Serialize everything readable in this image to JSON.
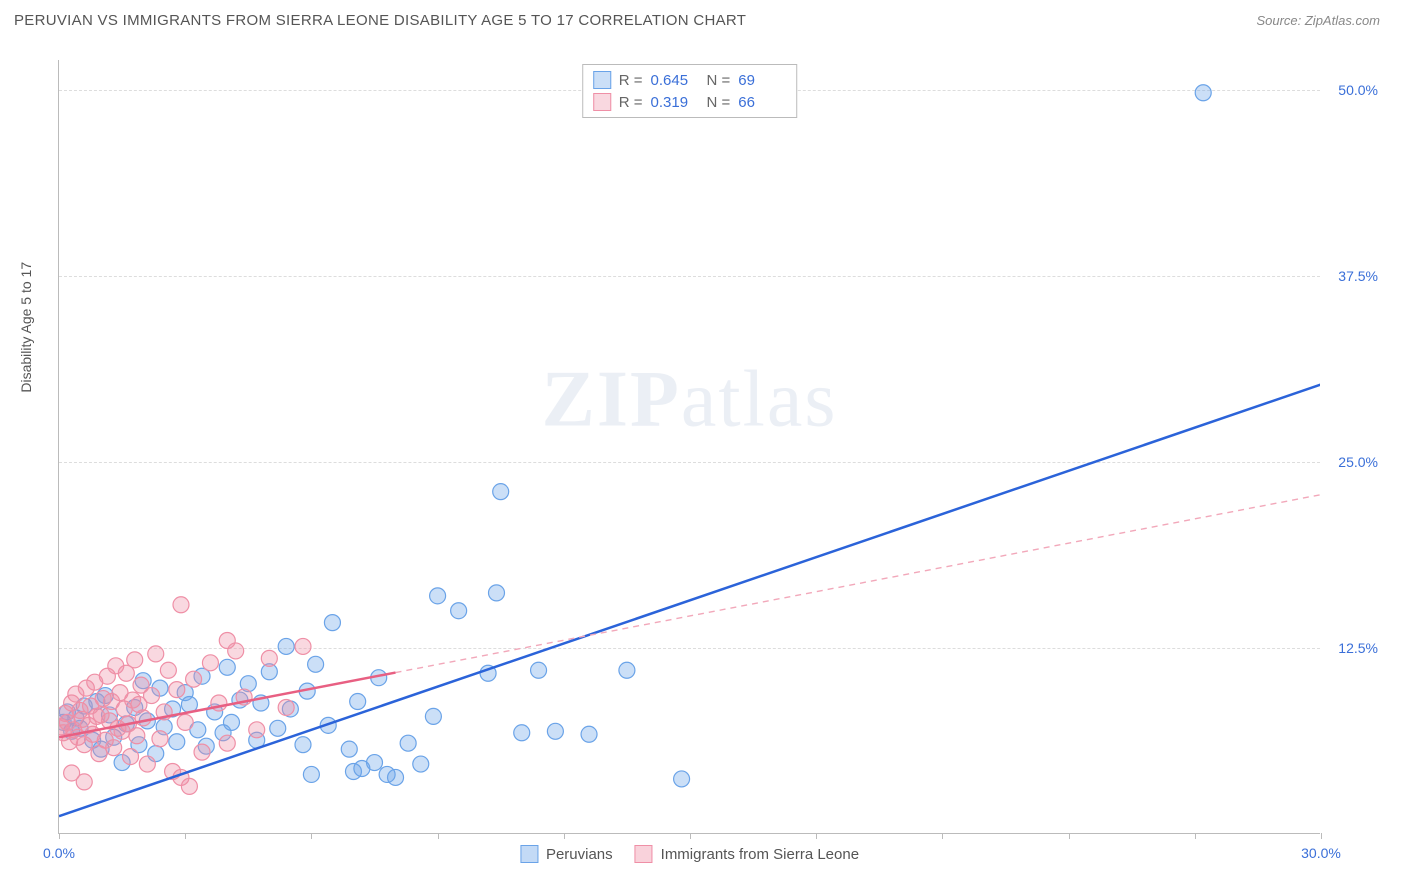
{
  "header": {
    "title": "PERUVIAN VS IMMIGRANTS FROM SIERRA LEONE DISABILITY AGE 5 TO 17 CORRELATION CHART",
    "source": "Source: ZipAtlas.com"
  },
  "chart": {
    "type": "scatter",
    "ylabel": "Disability Age 5 to 17",
    "xlim": [
      0,
      30
    ],
    "ylim": [
      0,
      52
    ],
    "xtick_positions": [
      0,
      3,
      6,
      9,
      12,
      15,
      18,
      21,
      24,
      27,
      30
    ],
    "xtick_labels": {
      "0": "0.0%",
      "30": "30.0%"
    },
    "ytick_positions": [
      12.5,
      25.0,
      37.5,
      50.0
    ],
    "ytick_labels": [
      "12.5%",
      "25.0%",
      "37.5%",
      "50.0%"
    ],
    "background_color": "#ffffff",
    "grid_color": "#dddddd",
    "axis_color": "#bbbbbb",
    "xtick_label_color": "#3a6fd8",
    "ytick_label_color": "#3a6fd8",
    "watermark": "ZIPatlas",
    "series": [
      {
        "name": "Peruvians",
        "marker_color": "#6aa3e8",
        "marker_fill": "rgba(106,163,232,0.35)",
        "marker_radius": 8,
        "line_color": "#2b63d9",
        "line_width": 2.5,
        "dash_color": "#2b63d9",
        "R": "0.645",
        "N": "69",
        "trend": {
          "x1": 0,
          "y1": 1.2,
          "x2": 30,
          "y2": 30.2
        },
        "solid_extent_x": 30,
        "points": [
          [
            0.1,
            7.5
          ],
          [
            0.2,
            8.2
          ],
          [
            0.3,
            6.9
          ],
          [
            0.4,
            7.8
          ],
          [
            0.5,
            7.1
          ],
          [
            0.6,
            8.6
          ],
          [
            0.8,
            6.3
          ],
          [
            0.9,
            8.9
          ],
          [
            1.0,
            5.7
          ],
          [
            1.1,
            9.3
          ],
          [
            1.2,
            8.0
          ],
          [
            1.3,
            6.5
          ],
          [
            1.5,
            4.8
          ],
          [
            1.6,
            7.4
          ],
          [
            1.8,
            8.5
          ],
          [
            1.9,
            6.0
          ],
          [
            2.0,
            10.3
          ],
          [
            2.1,
            7.6
          ],
          [
            2.3,
            5.4
          ],
          [
            2.4,
            9.8
          ],
          [
            2.5,
            7.2
          ],
          [
            2.7,
            8.4
          ],
          [
            2.8,
            6.2
          ],
          [
            3.0,
            9.5
          ],
          [
            3.1,
            8.7
          ],
          [
            3.3,
            7.0
          ],
          [
            3.4,
            10.6
          ],
          [
            3.5,
            5.9
          ],
          [
            3.7,
            8.2
          ],
          [
            3.9,
            6.8
          ],
          [
            4.0,
            11.2
          ],
          [
            4.1,
            7.5
          ],
          [
            4.3,
            9.0
          ],
          [
            4.5,
            10.1
          ],
          [
            4.7,
            6.3
          ],
          [
            4.8,
            8.8
          ],
          [
            5.0,
            10.9
          ],
          [
            5.2,
            7.1
          ],
          [
            5.4,
            12.6
          ],
          [
            5.5,
            8.4
          ],
          [
            5.8,
            6.0
          ],
          [
            5.9,
            9.6
          ],
          [
            6.0,
            4.0
          ],
          [
            6.1,
            11.4
          ],
          [
            6.4,
            7.3
          ],
          [
            6.5,
            14.2
          ],
          [
            6.9,
            5.7
          ],
          [
            7.0,
            4.2
          ],
          [
            7.1,
            8.9
          ],
          [
            7.2,
            4.4
          ],
          [
            7.5,
            4.8
          ],
          [
            7.6,
            10.5
          ],
          [
            7.8,
            4.0
          ],
          [
            8.0,
            3.8
          ],
          [
            8.3,
            6.1
          ],
          [
            8.6,
            4.7
          ],
          [
            8.9,
            7.9
          ],
          [
            9.0,
            16.0
          ],
          [
            9.5,
            15.0
          ],
          [
            10.2,
            10.8
          ],
          [
            10.4,
            16.2
          ],
          [
            11.0,
            6.8
          ],
          [
            11.4,
            11.0
          ],
          [
            11.8,
            6.9
          ],
          [
            12.6,
            6.7
          ],
          [
            13.5,
            11.0
          ],
          [
            14.8,
            3.7
          ],
          [
            10.5,
            23.0
          ],
          [
            27.2,
            49.8
          ]
        ]
      },
      {
        "name": "Immigrants from Sierra Leone",
        "marker_color": "#ef8fa6",
        "marker_fill": "rgba(239,143,166,0.35)",
        "marker_radius": 8,
        "line_color": "#e85f82",
        "line_width": 2.5,
        "dash_color": "#f2a8ba",
        "R": "0.319",
        "N": "66",
        "trend": {
          "x1": 0,
          "y1": 6.5,
          "x2": 30,
          "y2": 22.8
        },
        "solid_extent_x": 8.0,
        "points": [
          [
            0.05,
            7.2
          ],
          [
            0.1,
            6.8
          ],
          [
            0.15,
            8.1
          ],
          [
            0.2,
            7.5
          ],
          [
            0.25,
            6.2
          ],
          [
            0.3,
            8.8
          ],
          [
            0.35,
            7.0
          ],
          [
            0.4,
            9.4
          ],
          [
            0.45,
            6.5
          ],
          [
            0.5,
            8.3
          ],
          [
            0.55,
            7.7
          ],
          [
            0.6,
            6.0
          ],
          [
            0.65,
            9.8
          ],
          [
            0.7,
            7.3
          ],
          [
            0.75,
            8.6
          ],
          [
            0.8,
            6.7
          ],
          [
            0.85,
            10.2
          ],
          [
            0.9,
            7.9
          ],
          [
            0.95,
            5.4
          ],
          [
            1.0,
            8.0
          ],
          [
            1.05,
            9.1
          ],
          [
            1.1,
            6.3
          ],
          [
            1.15,
            10.6
          ],
          [
            1.2,
            7.6
          ],
          [
            1.25,
            8.9
          ],
          [
            1.3,
            5.8
          ],
          [
            1.35,
            11.3
          ],
          [
            1.4,
            7.1
          ],
          [
            1.45,
            9.5
          ],
          [
            1.5,
            6.9
          ],
          [
            1.55,
            8.4
          ],
          [
            1.6,
            10.8
          ],
          [
            1.65,
            7.4
          ],
          [
            1.7,
            5.2
          ],
          [
            1.75,
            9.0
          ],
          [
            1.8,
            11.7
          ],
          [
            1.85,
            6.6
          ],
          [
            1.9,
            8.7
          ],
          [
            1.95,
            10.0
          ],
          [
            2.0,
            7.8
          ],
          [
            2.1,
            4.7
          ],
          [
            2.2,
            9.3
          ],
          [
            2.3,
            12.1
          ],
          [
            2.4,
            6.4
          ],
          [
            2.5,
            8.2
          ],
          [
            2.6,
            11.0
          ],
          [
            2.7,
            4.2
          ],
          [
            2.8,
            9.7
          ],
          [
            2.9,
            3.8
          ],
          [
            3.0,
            7.5
          ],
          [
            3.1,
            3.2
          ],
          [
            3.2,
            10.4
          ],
          [
            3.4,
            5.5
          ],
          [
            3.6,
            11.5
          ],
          [
            3.8,
            8.8
          ],
          [
            4.0,
            6.1
          ],
          [
            4.2,
            12.3
          ],
          [
            4.4,
            9.2
          ],
          [
            4.7,
            7.0
          ],
          [
            5.0,
            11.8
          ],
          [
            5.4,
            8.5
          ],
          [
            5.8,
            12.6
          ],
          [
            2.9,
            15.4
          ],
          [
            4.0,
            13.0
          ],
          [
            0.3,
            4.1
          ],
          [
            0.6,
            3.5
          ]
        ]
      }
    ],
    "legend_bottom": [
      {
        "label": "Peruvians",
        "fill": "rgba(106,163,232,0.4)",
        "border": "#6aa3e8"
      },
      {
        "label": "Immigrants from Sierra Leone",
        "fill": "rgba(239,143,166,0.4)",
        "border": "#ef8fa6"
      }
    ]
  }
}
